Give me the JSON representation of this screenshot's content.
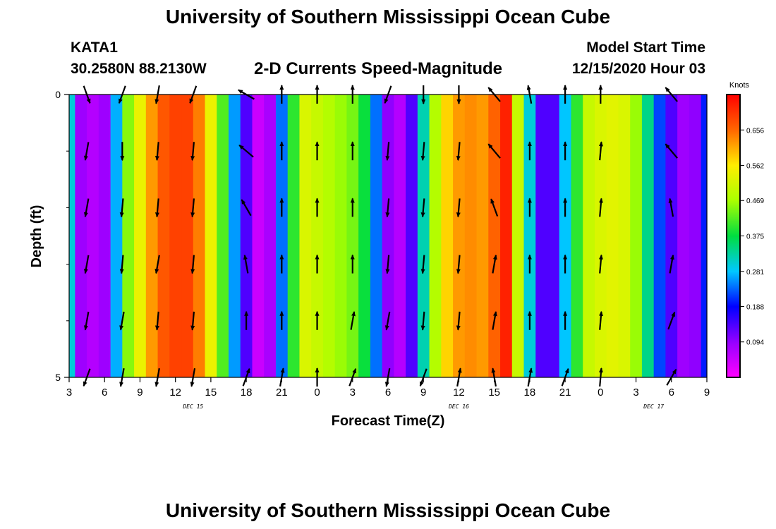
{
  "header": {
    "title": "University of Southern Mississippi Ocean Cube",
    "station": "KATA1",
    "coords": "30.2580N 88.2130W",
    "subtitle": "2-D Currents Speed-Magnitude",
    "start_label": "Model Start Time",
    "start_value": "12/15/2020 Hour 03"
  },
  "footer": {
    "title": "University of Southern Mississippi Ocean Cube"
  },
  "chart_data": {
    "type": "heatmap",
    "title": "2-D Currents Speed-Magnitude",
    "xlabel": "Forecast Time(Z)",
    "ylabel": "Depth (ft)",
    "xlim": [
      0,
      54
    ],
    "ylim": [
      0,
      5
    ],
    "x_ticks": [
      {
        "x": 0,
        "label": "3"
      },
      {
        "x": 3,
        "label": "6"
      },
      {
        "x": 6,
        "label": "9"
      },
      {
        "x": 9,
        "label": "12"
      },
      {
        "x": 12,
        "label": "15"
      },
      {
        "x": 15,
        "label": "18"
      },
      {
        "x": 18,
        "label": "21"
      },
      {
        "x": 21,
        "label": "0"
      },
      {
        "x": 24,
        "label": "3"
      },
      {
        "x": 27,
        "label": "6"
      },
      {
        "x": 30,
        "label": "9"
      },
      {
        "x": 33,
        "label": "12"
      },
      {
        "x": 36,
        "label": "15"
      },
      {
        "x": 39,
        "label": "18"
      },
      {
        "x": 42,
        "label": "21"
      },
      {
        "x": 45,
        "label": "0"
      },
      {
        "x": 48,
        "label": "3"
      },
      {
        "x": 51,
        "label": "6"
      },
      {
        "x": 54,
        "label": "9"
      }
    ],
    "date_labels": [
      {
        "x": 10.5,
        "label": "DEC 15"
      },
      {
        "x": 33,
        "label": "DEC 16"
      },
      {
        "x": 49.5,
        "label": "DEC 17"
      }
    ],
    "y_ticks": [
      {
        "y": 0,
        "label": "0"
      },
      {
        "y": 5,
        "label": "5"
      }
    ],
    "y_minor_ticks": [
      1,
      2,
      3,
      4
    ],
    "colorbar": {
      "label": "Knots",
      "ticks": [
        0.094,
        0.188,
        0.281,
        0.375,
        0.469,
        0.562,
        0.656
      ],
      "range": [
        0.0,
        0.75
      ]
    },
    "times": [
      0,
      1,
      2,
      3,
      4,
      5,
      6,
      7,
      8,
      9,
      10,
      11,
      12,
      13,
      14,
      15,
      16,
      17,
      18,
      19,
      20,
      21,
      22,
      23,
      24,
      25,
      26,
      27,
      28,
      29,
      30,
      31,
      32,
      33,
      34,
      35,
      36,
      37,
      38,
      39,
      40,
      41,
      42,
      43,
      44,
      45,
      46,
      47,
      48,
      49,
      50,
      51,
      52,
      53,
      54
    ],
    "speed_knots": [
      0.3,
      0.09,
      0.07,
      0.09,
      0.27,
      0.45,
      0.54,
      0.62,
      0.67,
      0.69,
      0.69,
      0.64,
      0.54,
      0.42,
      0.26,
      0.14,
      0.05,
      0.08,
      0.24,
      0.4,
      0.52,
      0.5,
      0.48,
      0.46,
      0.44,
      0.38,
      0.24,
      0.1,
      0.07,
      0.14,
      0.32,
      0.48,
      0.58,
      0.62,
      0.63,
      0.62,
      0.66,
      0.72,
      0.5,
      0.3,
      0.14,
      0.14,
      0.28,
      0.4,
      0.5,
      0.52,
      0.53,
      0.52,
      0.46,
      0.34,
      0.22,
      0.14,
      0.09,
      0.1,
      0.2
    ],
    "vector_depths_ft": [
      0,
      1,
      2,
      3,
      4,
      5
    ],
    "vectors": [
      {
        "t": 1.5,
        "dirs": [
          160,
          190,
          190,
          190,
          190,
          200
        ]
      },
      {
        "t": 4.5,
        "dirs": [
          200,
          180,
          185,
          185,
          190,
          190
        ]
      },
      {
        "t": 7.5,
        "dirs": [
          190,
          185,
          185,
          190,
          185,
          190
        ]
      },
      {
        "t": 10.5,
        "dirs": [
          200,
          185,
          185,
          185,
          185,
          190
        ]
      },
      {
        "t": 15,
        "dirs": [
          300,
          310,
          330,
          350,
          0,
          20
        ]
      },
      {
        "t": 18,
        "dirs": [
          0,
          0,
          0,
          0,
          0,
          10
        ]
      },
      {
        "t": 21,
        "dirs": [
          0,
          0,
          0,
          0,
          0,
          0
        ]
      },
      {
        "t": 24,
        "dirs": [
          0,
          0,
          0,
          0,
          10,
          20
        ]
      },
      {
        "t": 27,
        "dirs": [
          200,
          185,
          185,
          185,
          190,
          190
        ]
      },
      {
        "t": 30,
        "dirs": [
          180,
          185,
          185,
          185,
          185,
          200
        ]
      },
      {
        "t": 33,
        "dirs": [
          180,
          185,
          185,
          185,
          185,
          10
        ]
      },
      {
        "t": 36,
        "dirs": [
          320,
          320,
          340,
          10,
          10,
          350
        ]
      },
      {
        "t": 39,
        "dirs": [
          350,
          0,
          0,
          0,
          0,
          10
        ]
      },
      {
        "t": 42,
        "dirs": [
          0,
          0,
          0,
          0,
          0,
          20
        ]
      },
      {
        "t": 45,
        "dirs": [
          0,
          5,
          5,
          5,
          5,
          5
        ]
      },
      {
        "t": 51,
        "dirs": [
          320,
          320,
          350,
          10,
          20,
          30
        ]
      }
    ]
  }
}
